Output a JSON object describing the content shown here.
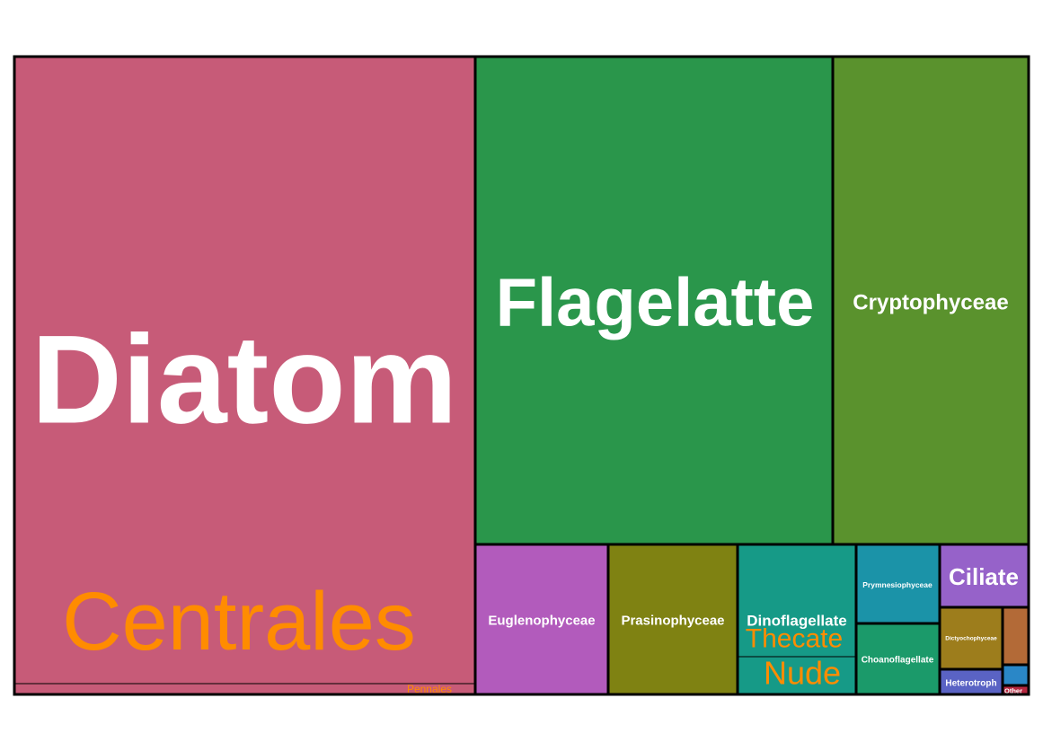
{
  "chart_data": {
    "type": "treemap",
    "title": "",
    "groups": [
      {
        "name": "Diatom",
        "color": "#c75b78",
        "subgroups": [
          {
            "name": "Centrales",
            "label_color": "#ff8c00"
          },
          {
            "name": "Pennales",
            "label_color": "#ff8c00"
          }
        ]
      },
      {
        "name": "Flagelatte",
        "color": "#2a964b",
        "subgroups": []
      },
      {
        "name": "Cryptophyceae",
        "color": "#5a922d",
        "subgroups": []
      },
      {
        "name": "Euglenophyceae",
        "color": "#b25bbc",
        "subgroups": []
      },
      {
        "name": "Prasinophyceae",
        "color": "#7f8212",
        "subgroups": []
      },
      {
        "name": "Dinoflagellate",
        "color": "#169a87",
        "subgroups": [
          {
            "name": "Thecate",
            "label_color": "#ff8c00"
          },
          {
            "name": "Nude",
            "label_color": "#ff8c00"
          }
        ]
      },
      {
        "name": "Prymnesiophyceae",
        "color": "#1b93a8",
        "subgroups": []
      },
      {
        "name": "Choanoflagellate",
        "color": "#1b9a6a",
        "subgroups": []
      },
      {
        "name": "Ciliate",
        "color": "#9662c9",
        "subgroups": []
      },
      {
        "name": "Dictyochophyceae",
        "color": "#9d7d1c",
        "subgroups": []
      },
      {
        "name": "Heterotroph",
        "color": "#5a63c4",
        "subgroups": []
      },
      {
        "name": "",
        "color": "#b36a37",
        "subgroups": []
      },
      {
        "name": "",
        "color": "#2a87c7",
        "subgroups": []
      },
      {
        "name": "Other",
        "color": "#b5273f",
        "subgroups": []
      }
    ]
  }
}
